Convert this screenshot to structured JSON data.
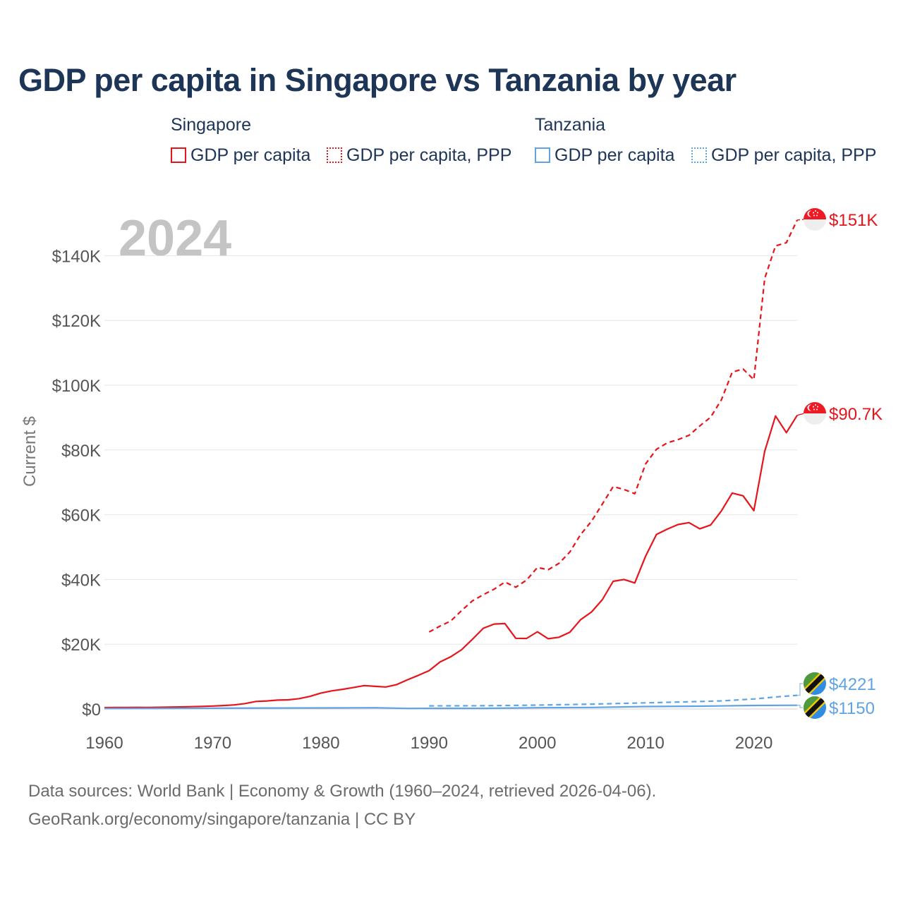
{
  "chart_data": {
    "type": "line",
    "title": "GDP per capita in Singapore vs Tanzania by year",
    "year_label": "2024",
    "ylabel": "Current $",
    "xlabel": "",
    "xlim": [
      1960,
      2024
    ],
    "ylim": [
      0,
      150000
    ],
    "x_ticks": [
      1960,
      1970,
      1980,
      1990,
      2000,
      2010,
      2020
    ],
    "x_tick_labels": [
      "1960",
      "1970",
      "1980",
      "1990",
      "2000",
      "2010",
      "2020"
    ],
    "y_ticks": [
      0,
      20000,
      40000,
      60000,
      80000,
      100000,
      120000,
      140000
    ],
    "y_tick_labels": [
      "$0",
      "$20K",
      "$40K",
      "$60K",
      "$80K",
      "$100K",
      "$120K",
      "$140K"
    ],
    "legend": {
      "groups": [
        {
          "country": "Singapore",
          "items": [
            "GDP per capita",
            "GDP per capita, PPP"
          ]
        },
        {
          "country": "Tanzania",
          "items": [
            "GDP per capita",
            "GDP per capita, PPP"
          ]
        }
      ]
    },
    "series": [
      {
        "name": "Singapore GDP per capita",
        "country": "Singapore",
        "metric": "GDP per capita",
        "color": "#e8141c",
        "dashed": false,
        "end_label": "$90.7K",
        "x": [
          1960,
          1961,
          1962,
          1963,
          1964,
          1965,
          1966,
          1967,
          1968,
          1969,
          1970,
          1971,
          1972,
          1973,
          1974,
          1975,
          1976,
          1977,
          1978,
          1979,
          1980,
          1981,
          1982,
          1983,
          1984,
          1985,
          1986,
          1987,
          1988,
          1989,
          1990,
          1991,
          1992,
          1993,
          1994,
          1995,
          1996,
          1997,
          1998,
          1999,
          2000,
          2001,
          2002,
          2003,
          2004,
          2005,
          2006,
          2007,
          2008,
          2009,
          2010,
          2011,
          2012,
          2013,
          2014,
          2015,
          2016,
          2017,
          2018,
          2019,
          2020,
          2021,
          2022,
          2023,
          2024
        ],
        "values": [
          428,
          449,
          472,
          511,
          485,
          516,
          567,
          626,
          709,
          812,
          925,
          1070,
          1264,
          1685,
          2342,
          2490,
          2746,
          2842,
          3194,
          3901,
          4928,
          5596,
          6078,
          6633,
          7235,
          6998,
          6799,
          7539,
          9016,
          10394,
          11862,
          14502,
          16136,
          18290,
          21553,
          24915,
          26233,
          26376,
          21829,
          21796,
          23853,
          21700,
          22160,
          23730,
          27600,
          29961,
          33769,
          39433,
          40007,
          38927,
          47237,
          53891,
          55546,
          56967,
          57563,
          55647,
          56828,
          61176,
          66679,
          65831,
          61274,
          79601,
          90470,
          85345,
          90700
        ]
      },
      {
        "name": "Singapore GDP per capita, PPP",
        "country": "Singapore",
        "metric": "GDP per capita, PPP",
        "color": "#e8141c",
        "dashed": true,
        "end_label": "$151K",
        "x": [
          1990,
          1991,
          1992,
          1993,
          1994,
          1995,
          1996,
          1997,
          1998,
          1999,
          2000,
          2001,
          2002,
          2003,
          2004,
          2005,
          2006,
          2007,
          2008,
          2009,
          2010,
          2011,
          2012,
          2013,
          2014,
          2015,
          2016,
          2017,
          2018,
          2019,
          2020,
          2021,
          2022,
          2023,
          2024
        ],
        "values": [
          23800,
          25600,
          27200,
          30400,
          33400,
          35300,
          37000,
          39200,
          37600,
          39800,
          43700,
          43000,
          45000,
          48500,
          53900,
          58000,
          63300,
          68700,
          67800,
          66500,
          75700,
          80200,
          82200,
          83200,
          84500,
          87400,
          90100,
          95500,
          104000,
          105000,
          101700,
          133000,
          143000,
          144000,
          151000
        ]
      },
      {
        "name": "Tanzania GDP per capita",
        "country": "Tanzania",
        "metric": "GDP per capita",
        "color": "#5fa3e4",
        "dashed": false,
        "end_label": "$1150",
        "x": [
          1960,
          1965,
          1970,
          1975,
          1980,
          1985,
          1988,
          1990,
          1995,
          2000,
          2005,
          2010,
          2015,
          2020,
          2024
        ],
        "values": [
          150,
          180,
          250,
          300,
          320,
          400,
          180,
          200,
          190,
          390,
          470,
          760,
          880,
          1080,
          1150
        ]
      },
      {
        "name": "Tanzania GDP per capita, PPP",
        "country": "Tanzania",
        "metric": "GDP per capita, PPP",
        "color": "#5fa3e4",
        "dashed": true,
        "end_label": "$4221",
        "x": [
          1990,
          1995,
          2000,
          2005,
          2010,
          2015,
          2017,
          2020,
          2022,
          2024
        ],
        "values": [
          950,
          1000,
          1200,
          1500,
          1900,
          2300,
          2500,
          3100,
          3700,
          4221
        ]
      }
    ]
  },
  "footer": {
    "line1": "Data sources: World Bank | Economy & Growth (1960–2024, retrieved 2026-04-06).",
    "line2": "GeoRank.org/economy/singapore/tanzania | CC BY"
  }
}
